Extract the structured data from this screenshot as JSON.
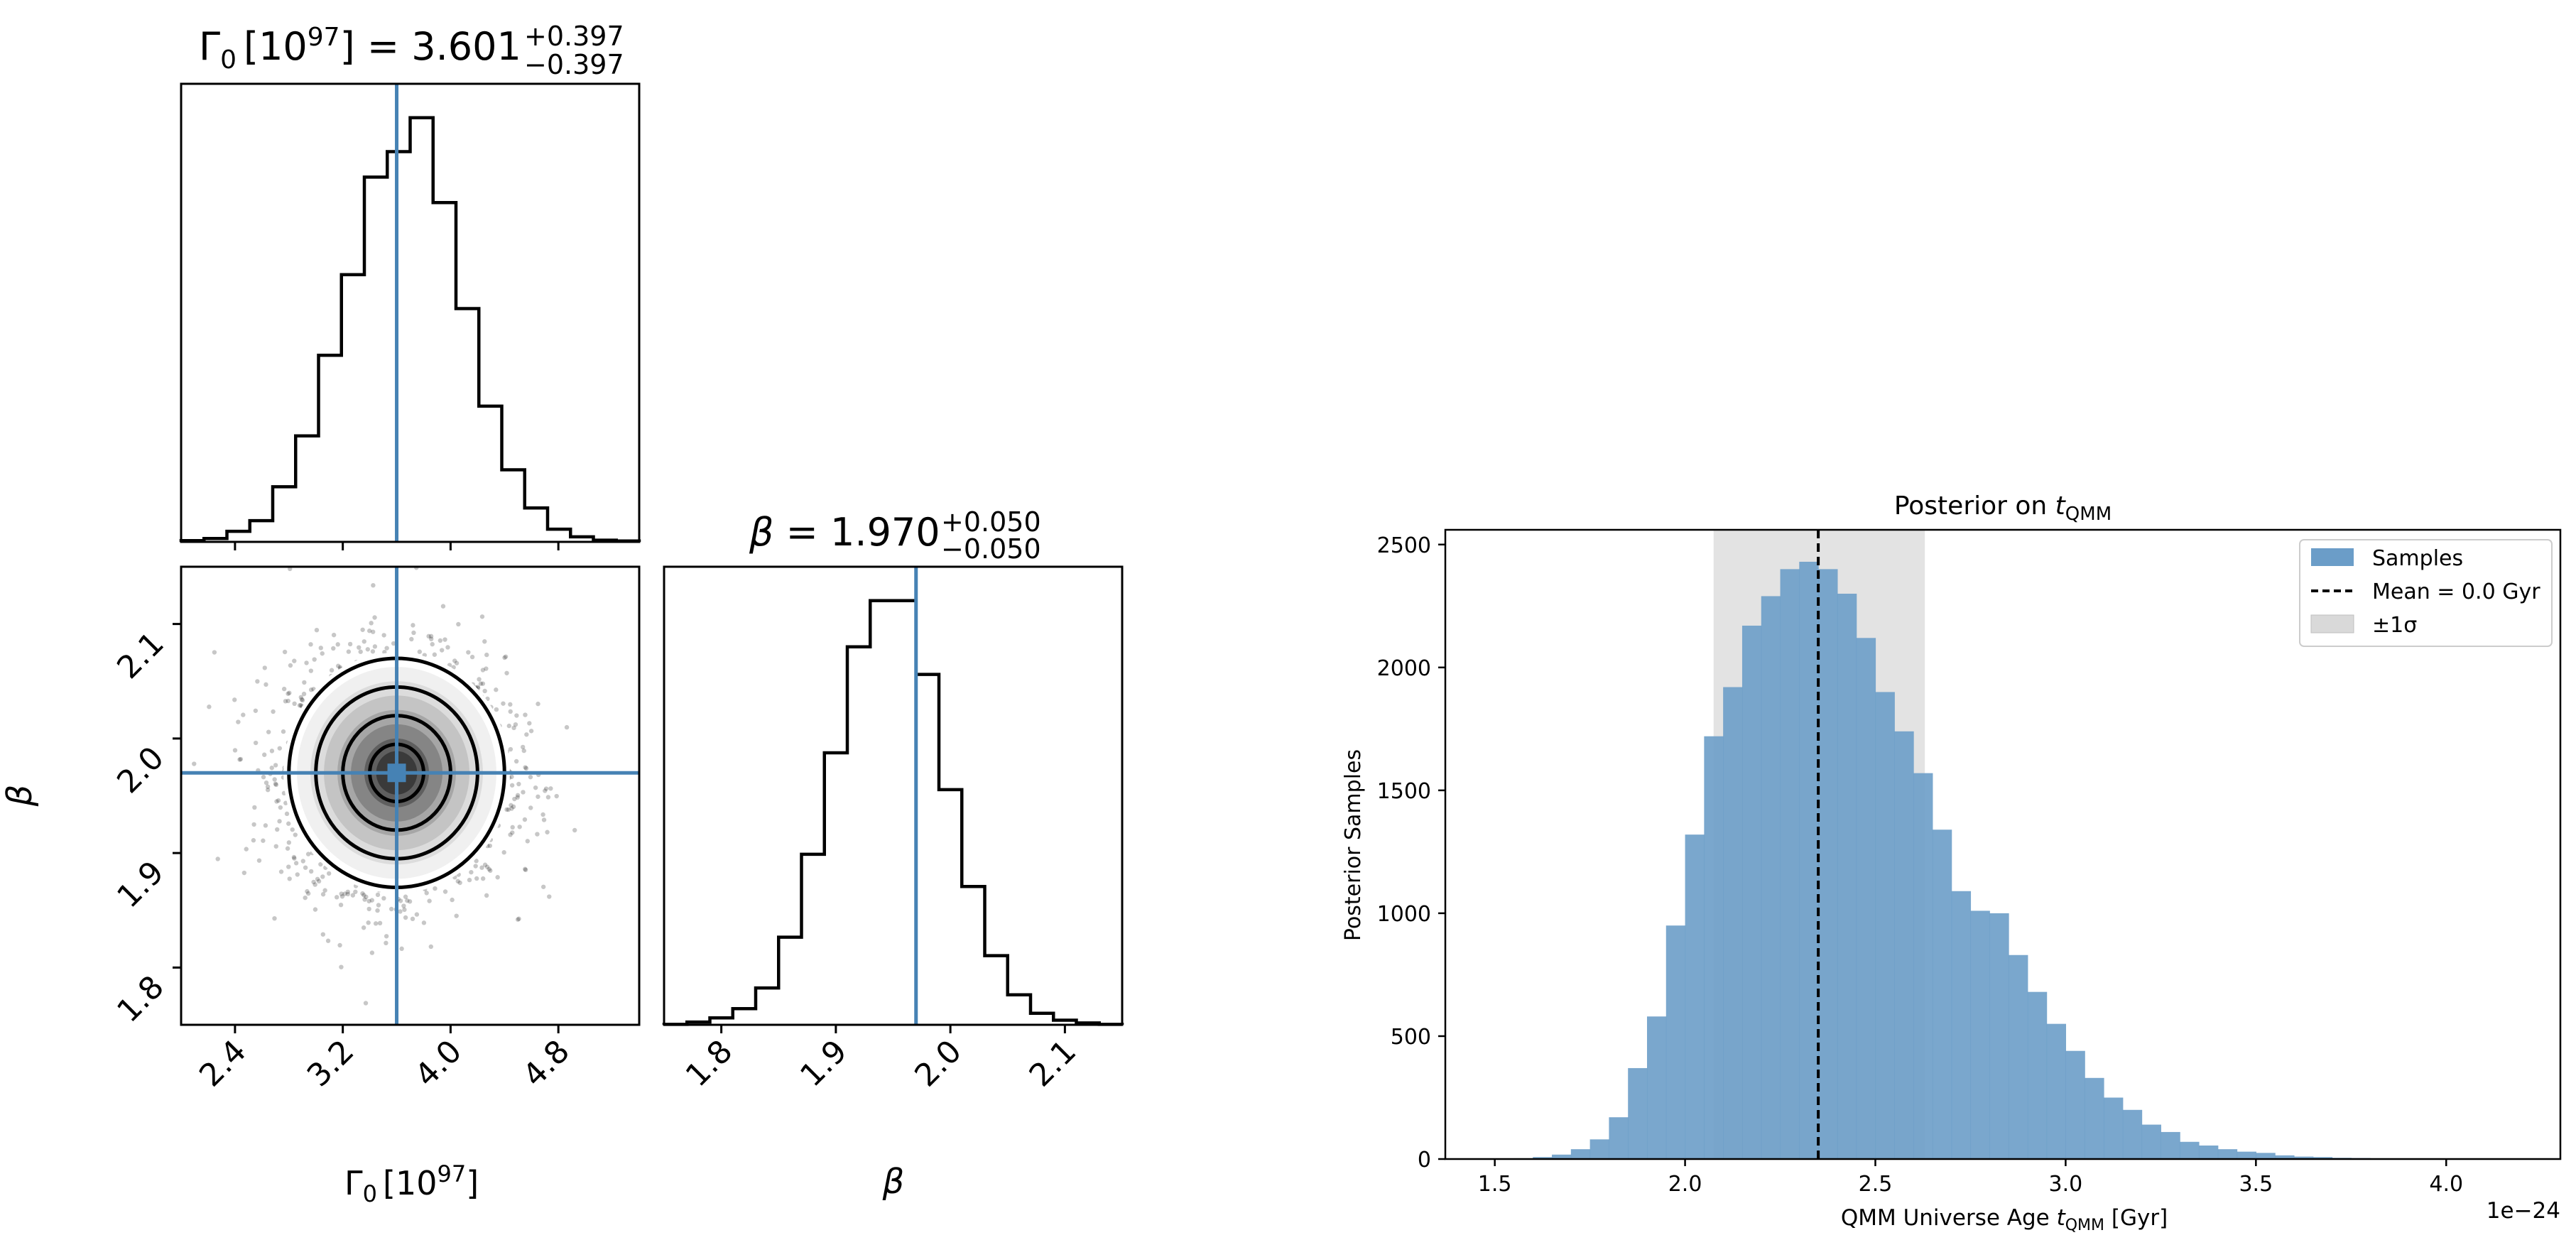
{
  "chart_data": [
    {
      "type": "corner",
      "parameters": [
        {
          "symbol": "Γ",
          "subscript": "0",
          "bracket": "[10",
          "exp": "97",
          "bracket_end": "]",
          "value": "3.601",
          "plus": "+0.397",
          "minus": "−0.397",
          "truth": 3.6
        },
        {
          "symbol": "β",
          "value": "1.970",
          "plus": "+0.050",
          "minus": "−0.050",
          "truth": 1.97
        }
      ],
      "hist_gamma": {
        "xlim": [
          2.0,
          5.4
        ],
        "edges": [
          2.0,
          2.17,
          2.34,
          2.51,
          2.68,
          2.85,
          3.02,
          3.19,
          3.36,
          3.53,
          3.7,
          3.87,
          4.04,
          4.21,
          4.38,
          4.55,
          4.72,
          4.89,
          5.06,
          5.23,
          5.4
        ],
        "values": [
          0.3,
          0.8,
          2.5,
          5,
          13,
          25,
          44,
          63,
          86,
          92,
          100,
          80,
          55,
          32,
          17,
          8,
          3,
          1.2,
          0.4,
          0.2
        ]
      },
      "hist_beta": {
        "xlim": [
          1.75,
          2.15
        ],
        "edges": [
          1.75,
          1.77,
          1.79,
          1.81,
          1.83,
          1.85,
          1.87,
          1.89,
          1.91,
          1.93,
          1.95,
          1.97,
          1.99,
          2.01,
          2.03,
          2.05,
          2.07,
          2.09,
          2.11,
          2.13,
          2.15
        ],
        "values": [
          0.1,
          0.6,
          1.5,
          3.5,
          8,
          19,
          37,
          59,
          82,
          92,
          92,
          76,
          51,
          30,
          15,
          6.5,
          2.5,
          1,
          0.4,
          0.1
        ]
      },
      "scatter_panel": {
        "xlim": [
          2.0,
          5.4
        ],
        "ylim": [
          1.75,
          2.15
        ],
        "contour_sigmas": [
          0.5,
          1.0,
          1.5,
          2.0
        ]
      },
      "x_ticks_gamma": [
        "2.4",
        "3.2",
        "4.0",
        "4.8"
      ],
      "x_tick_vals_gamma": [
        2.4,
        3.2,
        4.0,
        4.8
      ],
      "y_ticks_beta": [
        "1.8",
        "1.9",
        "2.0",
        "2.1"
      ],
      "y_tick_vals_beta": [
        1.8,
        1.9,
        2.0,
        2.1
      ],
      "x_ticks_beta": [
        "1.8",
        "1.9",
        "2.0",
        "2.1"
      ],
      "x_tick_vals_beta": [
        1.8,
        1.9,
        2.0,
        2.1
      ],
      "xlabel_gamma": {
        "symbol": "Γ",
        "subscript": "0",
        "bracket": "[10",
        "exp": "97",
        "bracket_end": "]"
      },
      "xlabel_beta": "β",
      "ylabel_beta": "β",
      "truth_color": "#4682b4"
    },
    {
      "type": "bar",
      "title": "Posterior on ",
      "title_var": "t",
      "title_sub": "QMM",
      "xlabel": "QMM Universe Age ",
      "xlabel_var": "t",
      "xlabel_sub": "QMM",
      "xlabel_unit": " [Gyr]",
      "ylabel": "Posterior Samples",
      "offset_label": "1e−24",
      "xlim": [
        1.37,
        4.3
      ],
      "ylim": [
        0,
        2560
      ],
      "x_ticks": [
        "1.5",
        "2.0",
        "2.5",
        "3.0",
        "3.5",
        "4.0"
      ],
      "x_tick_vals": [
        1.5,
        2.0,
        2.5,
        3.0,
        3.5,
        4.0
      ],
      "y_ticks": [
        "0",
        "500",
        "1000",
        "1500",
        "2000",
        "2500"
      ],
      "y_tick_vals": [
        0,
        500,
        1000,
        1500,
        2000,
        2500
      ],
      "bin_start": 1.5,
      "bin_width": 0.05,
      "values": [
        0,
        3,
        8,
        18,
        40,
        80,
        170,
        370,
        580,
        950,
        1320,
        1720,
        1920,
        2170,
        2290,
        2400,
        2430,
        2400,
        2300,
        2120,
        1900,
        1740,
        1570,
        1340,
        1090,
        1010,
        1000,
        830,
        680,
        550,
        440,
        330,
        250,
        200,
        140,
        110,
        70,
        55,
        40,
        30,
        25,
        15,
        10,
        8,
        5,
        4,
        3,
        2,
        2,
        1,
        1,
        0,
        0,
        0,
        0,
        0,
        0,
        0,
        0,
        0,
        0
      ],
      "mean": 2.35,
      "sigma_band": [
        2.075,
        2.63
      ],
      "legend": [
        {
          "kind": "patch",
          "label": "Samples",
          "color": "#6b9dc8"
        },
        {
          "kind": "dashed",
          "label": "Mean = 0.0 Gyr",
          "color": "#000000"
        },
        {
          "kind": "patch",
          "label": "±1σ",
          "color": "#d9d9d9"
        }
      ],
      "bar_color": "#6b9dc8",
      "band_color": "#d9d9d9"
    }
  ]
}
